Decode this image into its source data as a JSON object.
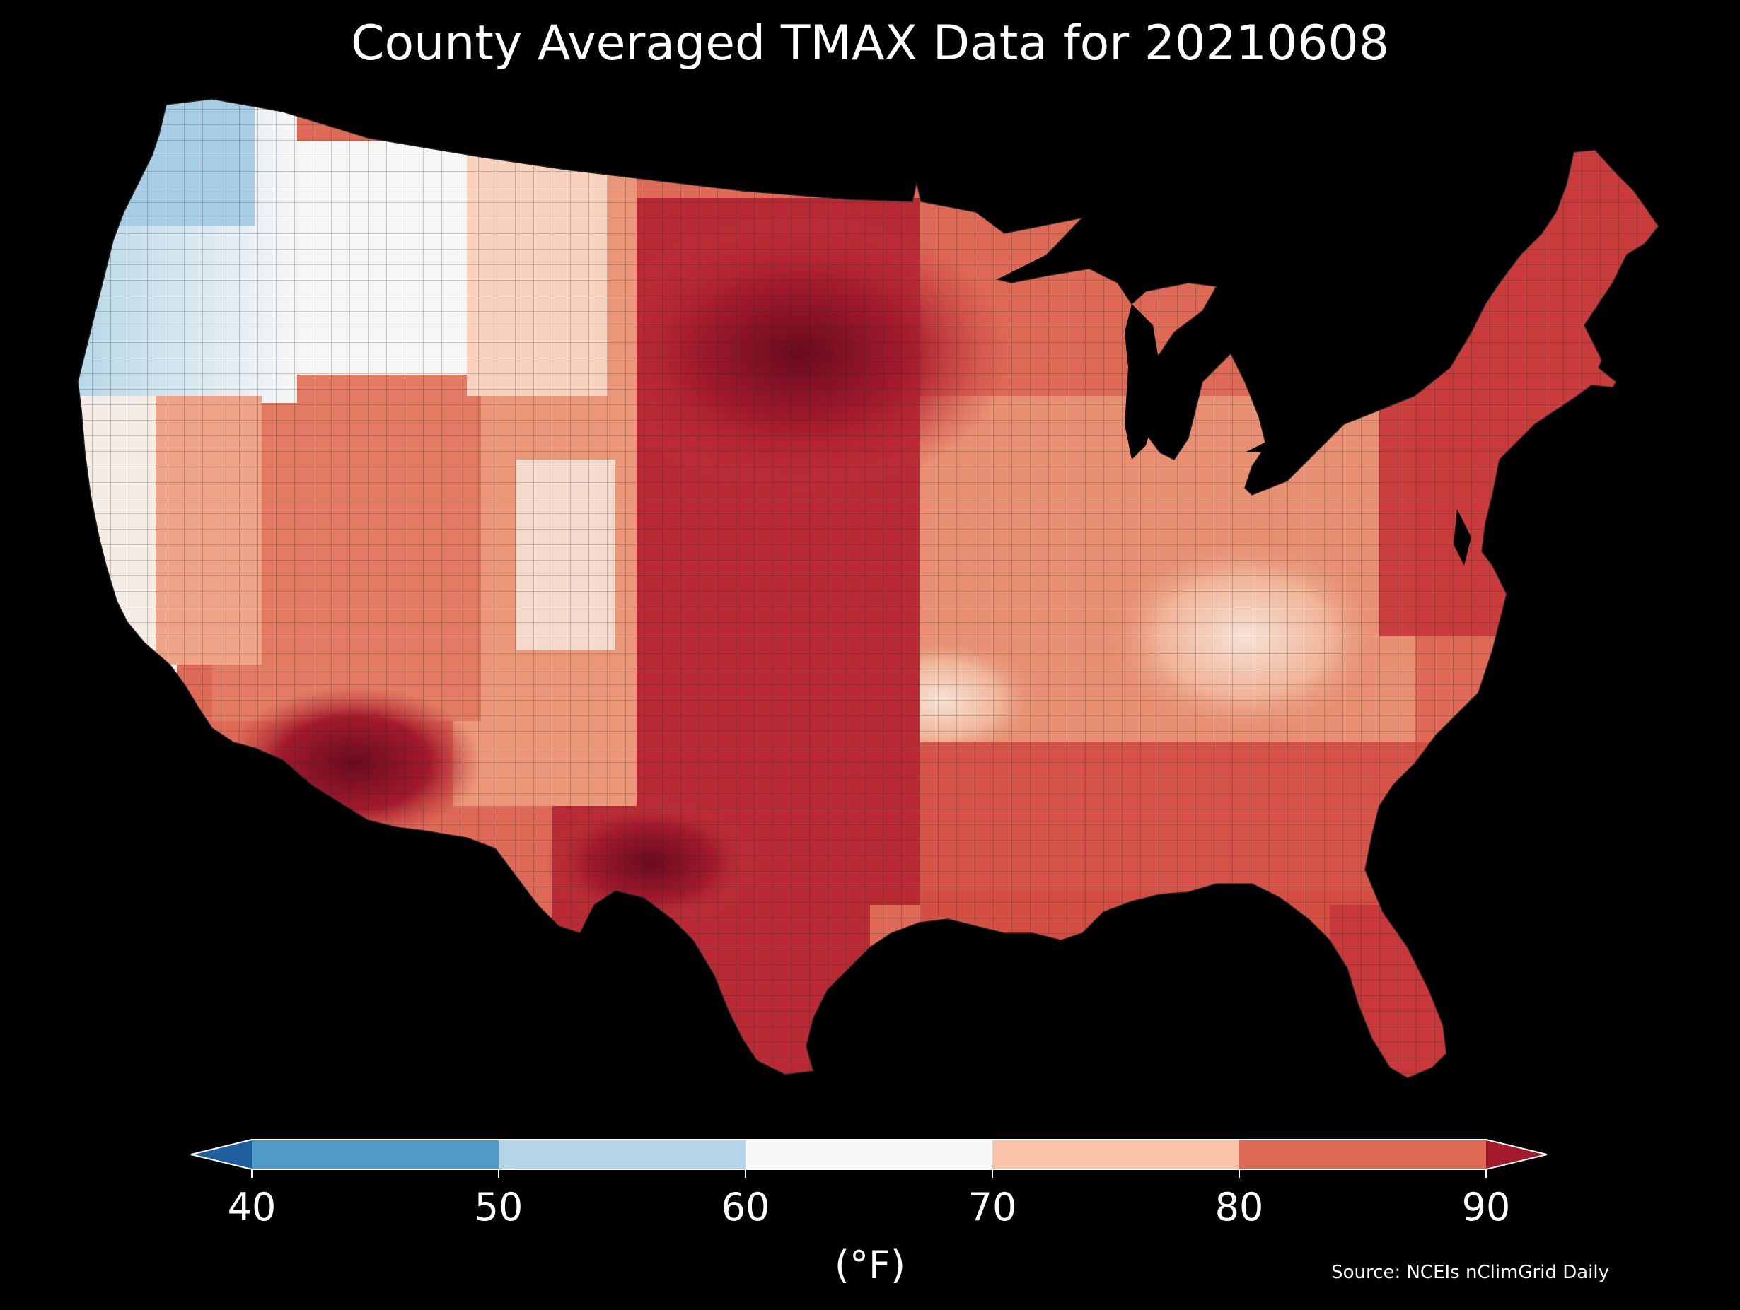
{
  "title": "County Averaged TMAX Data for 20210608",
  "source": "Source: NCEIs nClimGrid Daily",
  "colorbar": {
    "units": "(°F)",
    "ticks": [
      "40",
      "50",
      "60",
      "70",
      "80",
      "90"
    ],
    "min": 40,
    "max": 90,
    "extend": "both",
    "bins": [
      {
        "from": 40,
        "to": 50,
        "color": "#4f9ac9"
      },
      {
        "from": 50,
        "to": 60,
        "color": "#b6d7e9"
      },
      {
        "from": 60,
        "to": 70,
        "color": "#f6f6f6"
      },
      {
        "from": 70,
        "to": 80,
        "color": "#f9c3a8"
      },
      {
        "from": 80,
        "to": 90,
        "color": "#de6a55"
      }
    ],
    "under_color": "#1f5f9f",
    "over_color": "#a31a2c"
  },
  "map": {
    "region": "Contiguous United States",
    "background_color": "#000000",
    "water_color": "#000000",
    "county_border_color": "#1a1a1a"
  }
}
